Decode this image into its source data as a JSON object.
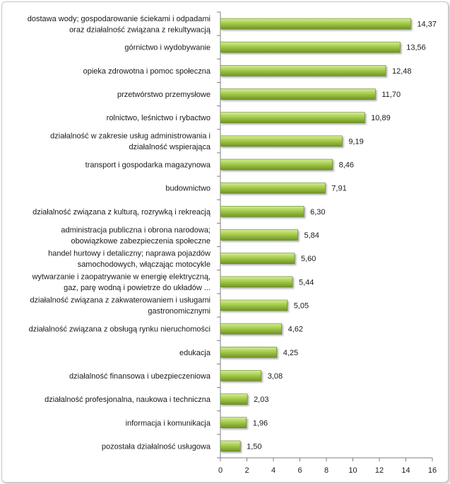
{
  "chart_data": {
    "type": "bar",
    "orientation": "horizontal",
    "categories": [
      [
        "dostawa wody; gospodarowanie ściekami i odpadami",
        "oraz działalność związana z rekultywacją"
      ],
      [
        "górnictwo i wydobywanie"
      ],
      [
        "opieka zdrowotna i pomoc społeczna"
      ],
      [
        "przetwórstwo przemysłowe"
      ],
      [
        "rolnictwo, leśnictwo i rybactwo"
      ],
      [
        "działalność w zakresie usług administrowania i",
        "działalność wspierająca"
      ],
      [
        "transport i gospodarka magazynowa"
      ],
      [
        "budownictwo"
      ],
      [
        "działalność związana z kulturą, rozrywką i rekreacją"
      ],
      [
        "administracja publiczna i obrona narodowa;",
        "obowiązkowe zabezpieczenia społeczne"
      ],
      [
        "handel hurtowy i detaliczny; naprawa pojazdów",
        "samochodowych, włączając motocykle"
      ],
      [
        "wytwarzanie i zaopatrywanie w energię elektryczną,",
        "gaz, parę wodną i powietrze do układów ..."
      ],
      [
        "działalność związana z zakwaterowaniem i usługami",
        "gastronomicznymi"
      ],
      [
        "działalność związana z obsługą rynku nieruchomości"
      ],
      [
        "edukacja"
      ],
      [
        "działalność finansowa i ubezpieczeniowa"
      ],
      [
        "działalność profesjonalna, naukowa i techniczna"
      ],
      [
        "informacja i komunikacja"
      ],
      [
        "pozostała działalność usługowa"
      ]
    ],
    "values": [
      14.37,
      13.56,
      12.48,
      11.7,
      10.89,
      9.19,
      8.46,
      7.91,
      6.3,
      5.84,
      5.6,
      5.44,
      5.05,
      4.62,
      4.25,
      3.08,
      2.03,
      1.96,
      1.5
    ],
    "value_labels": [
      "14,37",
      "13,56",
      "12,48",
      "11,70",
      "10,89",
      "9,19",
      "8,46",
      "7,91",
      "6,30",
      "5,84",
      "5,60",
      "5,44",
      "5,05",
      "4,62",
      "4,25",
      "3,08",
      "2,03",
      "1,96",
      "1,50"
    ],
    "xlim": [
      0,
      16
    ],
    "xticks": [
      0,
      2,
      4,
      6,
      8,
      10,
      12,
      14,
      16
    ],
    "title": "",
    "xlabel": "",
    "ylabel": "",
    "grid": false,
    "colors": {
      "bar_light": "#d6ec9a",
      "bar_mid": "#a6cc4a",
      "bar_dark": "#6f9526",
      "bar_edge": "#5f8420",
      "axis": "#7f7f7f"
    }
  }
}
